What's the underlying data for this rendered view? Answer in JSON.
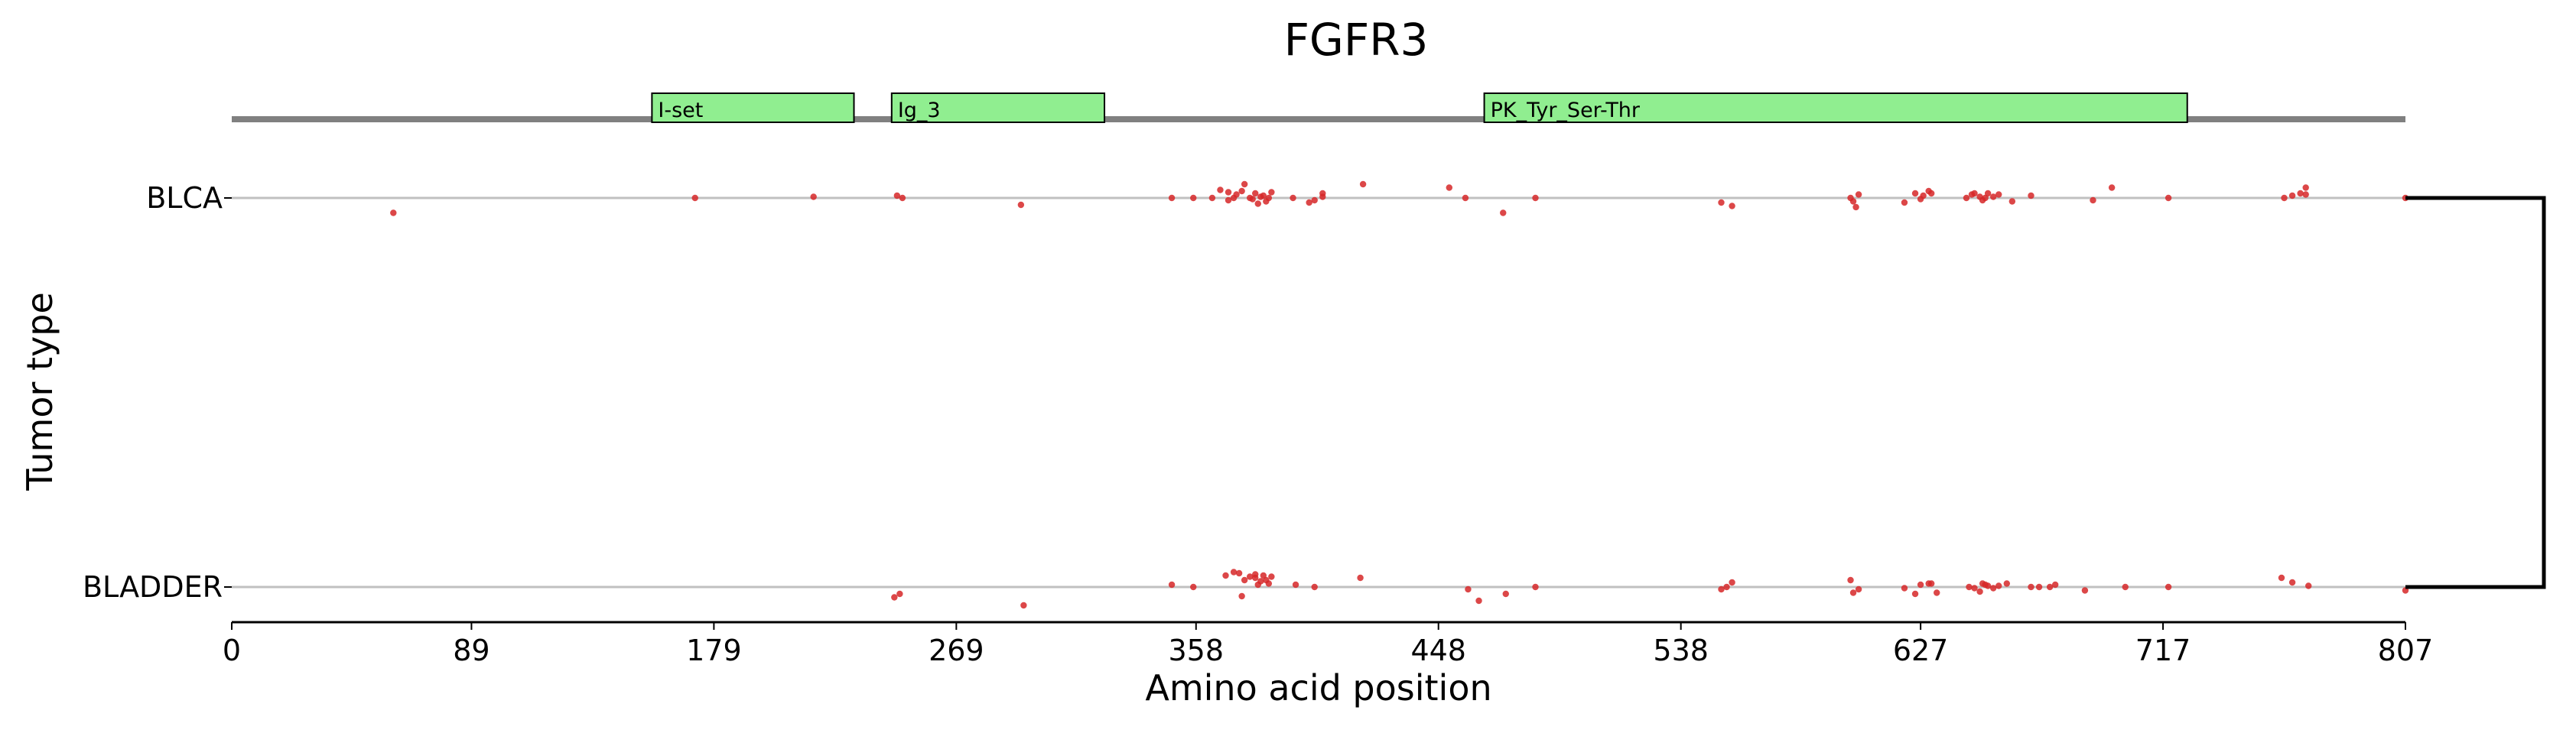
{
  "chart_data": {
    "type": "scatter",
    "title": "FGFR3",
    "xlabel": "Amino acid position",
    "ylabel": "Tumor type",
    "xlim": [
      0,
      807
    ],
    "xticks": [
      0,
      89,
      179,
      269,
      358,
      448,
      538,
      627,
      717,
      807
    ],
    "grid": false,
    "legend": "none",
    "colors": {
      "mutation": "#d62728",
      "domain_fill": "#90ee90",
      "backbone": "#808080",
      "track_line": "#c0c0c0",
      "bracket": "#000000"
    },
    "domains": [
      {
        "name": "I-set",
        "start": 156,
        "end": 231
      },
      {
        "name": "Ig_3",
        "start": 245,
        "end": 324
      },
      {
        "name": "PK_Tyr_Ser-Thr",
        "start": 465,
        "end": 726
      }
    ],
    "tracks": [
      "BLCA",
      "BLADDER"
    ],
    "series": [
      {
        "name": "BLCA",
        "x": [
          60,
          172,
          216,
          247,
          249,
          293,
          349,
          357,
          364,
          367,
          370,
          370,
          372,
          373,
          375,
          376,
          378,
          379,
          380,
          381,
          382,
          383,
          384,
          385,
          386,
          394,
          400,
          402,
          405,
          405,
          420,
          452,
          458,
          472,
          484,
          553,
          557,
          601,
          602,
          603,
          604,
          621,
          625,
          627,
          628,
          630,
          631,
          644,
          646,
          647,
          649,
          650,
          651,
          652,
          654,
          656,
          661,
          668,
          691,
          698,
          719,
          762,
          765,
          768,
          770,
          770,
          807
        ],
        "y": [
          -1.3,
          0.0,
          0.1,
          0.2,
          0.0,
          -0.6,
          0.0,
          0.0,
          0.0,
          0.7,
          0.5,
          -0.2,
          0.0,
          0.3,
          0.6,
          1.2,
          0.0,
          -0.1,
          0.4,
          -0.5,
          0.1,
          0.2,
          -0.3,
          0.0,
          0.5,
          0.0,
          -0.4,
          -0.2,
          0.1,
          0.4,
          1.2,
          0.9,
          0.0,
          -1.3,
          0.0,
          -0.4,
          -0.7,
          0.0,
          -0.3,
          -0.8,
          0.3,
          -0.4,
          0.4,
          -0.1,
          0.2,
          0.6,
          0.4,
          0.0,
          0.3,
          0.4,
          0.1,
          -0.2,
          0.0,
          0.4,
          0.1,
          0.3,
          -0.3,
          0.2,
          -0.2,
          0.9,
          0.0,
          0.0,
          0.2,
          0.4,
          0.3,
          0.9,
          0.0
        ],
        "marker_color": "#d62728"
      },
      {
        "name": "BLADDER",
        "x": [
          246,
          248,
          294,
          349,
          357,
          369,
          372,
          374,
          375,
          376,
          378,
          380,
          380,
          381,
          382,
          383,
          384,
          385,
          386,
          395,
          402,
          419,
          459,
          463,
          473,
          484,
          553,
          555,
          557,
          601,
          602,
          604,
          621,
          625,
          627,
          630,
          631,
          633,
          645,
          647,
          649,
          650,
          651,
          652,
          654,
          656,
          659,
          668,
          671,
          675,
          677,
          688,
          703,
          719,
          761,
          765,
          771,
          807
        ],
        "y": [
          -0.9,
          -0.6,
          -1.6,
          0.2,
          0.0,
          1.0,
          1.3,
          1.2,
          -0.8,
          0.6,
          0.9,
          1.1,
          0.8,
          0.2,
          0.5,
          1.0,
          0.6,
          0.3,
          0.9,
          0.2,
          0.0,
          0.8,
          -0.2,
          -1.2,
          -0.6,
          0.0,
          -0.2,
          0.0,
          0.4,
          0.6,
          -0.5,
          -0.2,
          -0.1,
          -0.6,
          0.2,
          0.3,
          0.3,
          -0.5,
          0.0,
          -0.1,
          -0.4,
          0.3,
          0.2,
          0.1,
          -0.1,
          0.1,
          0.3,
          0.0,
          0.0,
          0.0,
          0.2,
          -0.3,
          0.0,
          0.0,
          0.8,
          0.4,
          0.1,
          -0.3
        ],
        "marker_color": "#d62728"
      }
    ]
  }
}
